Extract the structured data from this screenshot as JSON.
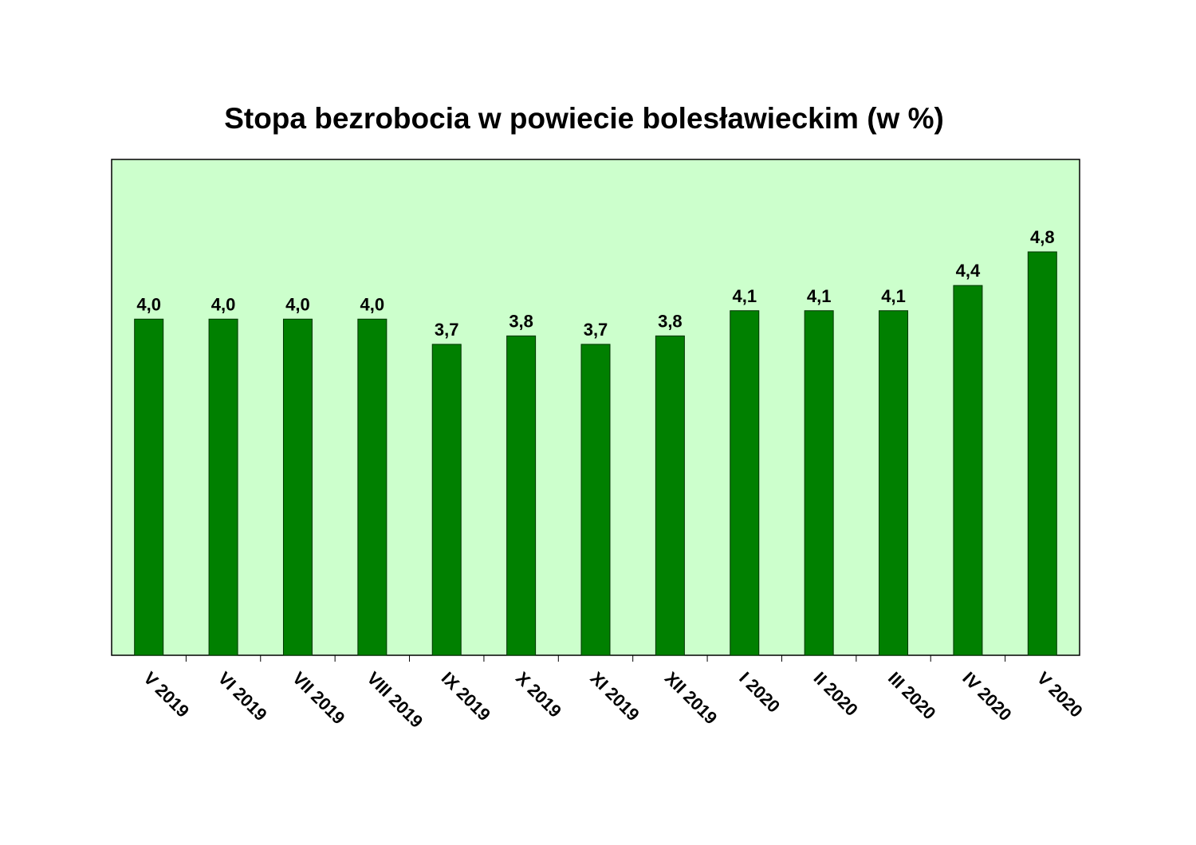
{
  "chart_data": {
    "type": "bar",
    "title": "Stopa bezrobocia w powiecie bolesławieckim (w %)",
    "xlabel": "",
    "ylabel": "",
    "ylim": [
      0,
      5.9
    ],
    "grid": false,
    "legend": "none",
    "categories": [
      "V 2019",
      "VI 2019",
      "VII 2019",
      "VIII 2019",
      "IX 2019",
      "X 2019",
      "XI 2019",
      "XII 2019",
      "I 2020",
      "II 2020",
      "III 2020",
      "IV 2020",
      "V 2020"
    ],
    "values": [
      4.0,
      4.0,
      4.0,
      4.0,
      3.7,
      3.8,
      3.7,
      3.8,
      4.1,
      4.1,
      4.1,
      4.4,
      4.8
    ],
    "value_labels": [
      "4,0",
      "4,0",
      "4,0",
      "4,0",
      "3,7",
      "3,8",
      "3,7",
      "3,8",
      "4,1",
      "4,1",
      "4,1",
      "4,4",
      "4,8"
    ],
    "colors": {
      "plot_background": "#ccffcc",
      "bar_fill": "#008000",
      "bar_stroke": "#003300"
    }
  }
}
